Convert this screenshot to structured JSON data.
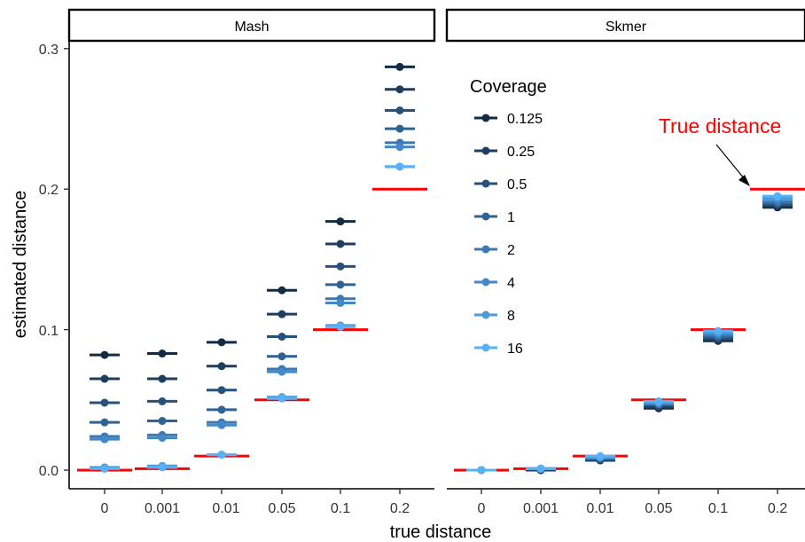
{
  "chart_data": {
    "type": "scatter",
    "facets": [
      "Mash",
      "Skmer"
    ],
    "categories": [
      "0",
      "0.001",
      "0.01",
      "0.05",
      "0.1",
      "0.2"
    ],
    "true_distance": [
      0,
      0.001,
      0.01,
      0.05,
      0.1,
      0.2
    ],
    "xlabel": "true distance",
    "ylabel": "estimated distance",
    "ylim": [
      -0.01,
      0.31
    ],
    "yticks": [
      "0.0",
      "0.1",
      "0.2",
      "0.3"
    ],
    "legend": {
      "title": "Coverage",
      "position": "inside-top"
    },
    "annotation": {
      "text": "True distance",
      "facet": "Skmer",
      "points_to": "0.2"
    },
    "colors": {
      "true_distance_line": "#ff0000",
      "annotation_text": "#ff0000",
      "series": [
        "#132b43",
        "#1d3e5e",
        "#27517a",
        "#2f6394",
        "#3a79b3",
        "#4389c7",
        "#4d9ad9",
        "#56b1f7"
      ]
    },
    "series": [
      {
        "name": "0.125",
        "Mash": [
          0.082,
          0.083,
          0.091,
          0.128,
          0.177,
          0.287
        ],
        "Skmer": [
          0.0,
          0.0,
          0.007,
          0.044,
          0.092,
          0.187
        ]
      },
      {
        "name": "0.25",
        "Mash": [
          0.065,
          0.065,
          0.074,
          0.111,
          0.161,
          0.271
        ],
        "Skmer": [
          0.0,
          0.0,
          0.007,
          0.045,
          0.093,
          0.188
        ]
      },
      {
        "name": "0.5",
        "Mash": [
          0.048,
          0.049,
          0.057,
          0.095,
          0.145,
          0.256
        ],
        "Skmer": [
          0.0,
          0.001,
          0.008,
          0.046,
          0.094,
          0.189
        ]
      },
      {
        "name": "1",
        "Mash": [
          0.034,
          0.035,
          0.043,
          0.081,
          0.132,
          0.243
        ],
        "Skmer": [
          0.0,
          0.001,
          0.008,
          0.047,
          0.095,
          0.19
        ]
      },
      {
        "name": "2",
        "Mash": [
          0.024,
          0.025,
          0.034,
          0.072,
          0.122,
          0.233
        ],
        "Skmer": [
          0.0,
          0.001,
          0.009,
          0.047,
          0.096,
          0.191
        ]
      },
      {
        "name": "4",
        "Mash": [
          0.022,
          0.023,
          0.032,
          0.07,
          0.119,
          0.23
        ],
        "Skmer": [
          0.0,
          0.001,
          0.009,
          0.048,
          0.097,
          0.193
        ]
      },
      {
        "name": "8",
        "Mash": [
          0.002,
          0.003,
          0.011,
          0.052,
          0.103,
          0.216
        ],
        "Skmer": [
          0.0,
          0.001,
          0.009,
          0.048,
          0.098,
          0.194
        ]
      },
      {
        "name": "16",
        "Mash": [
          0.001,
          0.002,
          0.011,
          0.051,
          0.102,
          0.216
        ],
        "Skmer": [
          0.0,
          0.001,
          0.01,
          0.049,
          0.099,
          0.195
        ]
      }
    ]
  }
}
